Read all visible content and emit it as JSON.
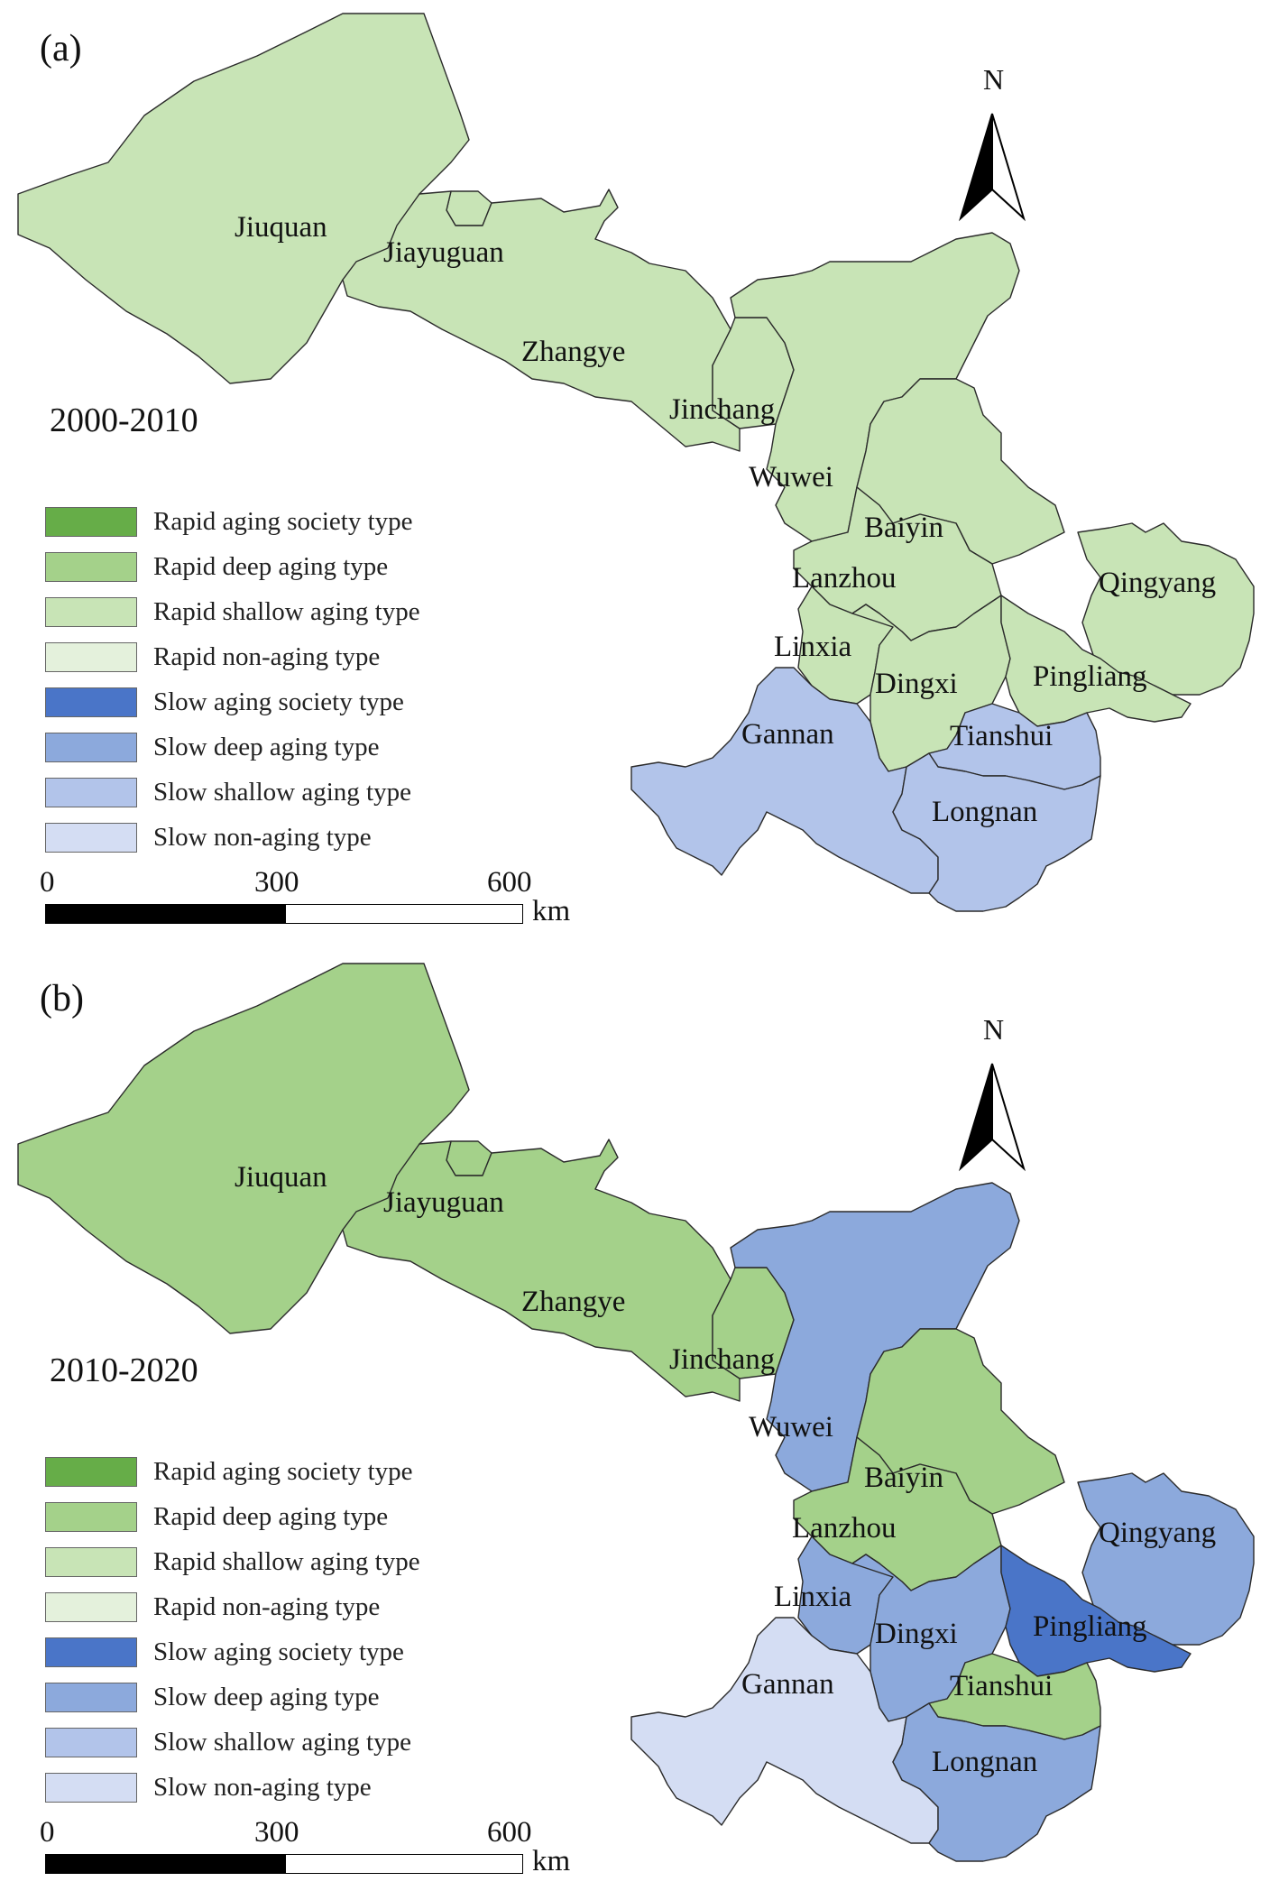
{
  "legend": {
    "items": [
      {
        "label": "Rapid aging society type",
        "color": "#66ad48"
      },
      {
        "label": "Rapid deep aging type",
        "color": "#a4d18a"
      },
      {
        "label": "Rapid shallow aging type",
        "color": "#c8e4b6"
      },
      {
        "label": "Rapid non-aging type",
        "color": "#e4f1dc"
      },
      {
        "label": "Slow aging society type",
        "color": "#4a75c8"
      },
      {
        "label": "Slow deep aging type",
        "color": "#8ca9dc"
      },
      {
        "label": "Slow shallow aging type",
        "color": "#b2c4ea"
      },
      {
        "label": "Slow non-aging type",
        "color": "#d4ddf3"
      }
    ]
  },
  "north_label": "N",
  "scale": {
    "ticks": [
      "0",
      "300",
      "600"
    ],
    "unit": "km"
  },
  "city_names": [
    "Jiuquan",
    "Jiayuguan",
    "Zhangye",
    "Jinchang",
    "Wuwei",
    "Baiyin",
    "Lanzhou",
    "Qingyang",
    "Linxia",
    "Dingxi",
    "Pingliang",
    "Gannan",
    "Tianshui",
    "Longnan"
  ],
  "panels": [
    {
      "label": "(a)",
      "period": "2000-2010",
      "region_types": {
        "Jiuquan": "Rapid shallow aging type",
        "Jiayuguan": "Rapid shallow aging type",
        "Zhangye": "Rapid shallow aging type",
        "Jinchang": "Rapid shallow aging type",
        "Wuwei": "Rapid shallow aging type",
        "Baiyin": "Rapid shallow aging type",
        "Lanzhou": "Rapid shallow aging type",
        "Qingyang": "Rapid shallow aging type",
        "Linxia": "Rapid shallow aging type",
        "Dingxi": "Rapid shallow aging type",
        "Pingliang": "Rapid shallow aging type",
        "Gannan": "Slow shallow aging type",
        "Tianshui": "Slow shallow aging type",
        "Longnan": "Slow shallow aging type"
      }
    },
    {
      "label": "(b)",
      "period": "2010-2020",
      "region_types": {
        "Jiuquan": "Rapid deep aging type",
        "Jiayuguan": "Rapid deep aging type",
        "Zhangye": "Rapid deep aging type",
        "Jinchang": "Rapid deep aging type",
        "Wuwei": "Slow deep aging type",
        "Baiyin": "Rapid deep aging type",
        "Lanzhou": "Rapid deep aging type",
        "Qingyang": "Slow deep aging type",
        "Linxia": "Slow deep aging type",
        "Dingxi": "Slow deep aging type",
        "Pingliang": "Slow aging society type",
        "Gannan": "Slow non-aging type",
        "Tianshui": "Rapid deep aging type",
        "Longnan": "Slow deep aging type"
      }
    }
  ]
}
